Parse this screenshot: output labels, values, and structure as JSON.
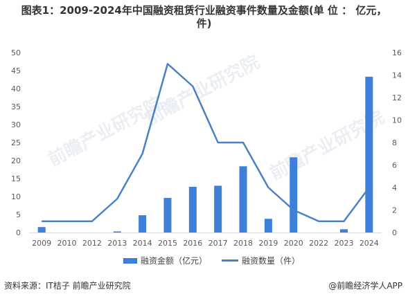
{
  "title_line1": "图表1：2009-2024年中国融资租赁行业融资事件数量及金额(单 位 ： 亿元，",
  "title_line2": "件)",
  "watermark_text": "前瞻产业研究院",
  "footer": {
    "source": "资料来源：IT桔子 前瞻产业研究院",
    "brand": "@前瞻经济学人APP"
  },
  "chart_data": {
    "type": "bar+line",
    "categories": [
      "2009",
      "2010",
      "2012",
      "2013",
      "2014",
      "2015",
      "2016",
      "2017",
      "2018",
      "2019",
      "2020",
      "2022",
      "2023",
      "2024"
    ],
    "series": [
      {
        "name": "融资金额（亿元）",
        "type": "bar",
        "axis": "left",
        "values": [
          1.5,
          0,
          0,
          0.3,
          4.8,
          9.6,
          12.7,
          13.0,
          18.4,
          3.8,
          20.9,
          0,
          0.9,
          43.3
        ]
      },
      {
        "name": "融资数量（件）",
        "type": "line",
        "axis": "right",
        "values": [
          1,
          1,
          1,
          3,
          7,
          15,
          13,
          8,
          8,
          4,
          2,
          1,
          1,
          4
        ]
      }
    ],
    "left_axis": {
      "min": 0,
      "max": 50,
      "ticks": [
        0,
        5,
        10,
        15,
        20,
        25,
        30,
        35,
        40,
        45,
        50
      ]
    },
    "right_axis": {
      "min": 0,
      "max": 16,
      "ticks": [
        0,
        2,
        4,
        6,
        8,
        10,
        12,
        14,
        16
      ]
    },
    "grid": false,
    "legend_position": "bottom",
    "colors": {
      "bar": "#3d7fd9",
      "line": "#4a80c4",
      "axis_text": "#595959",
      "axis_line": "#d9d9d9"
    }
  }
}
